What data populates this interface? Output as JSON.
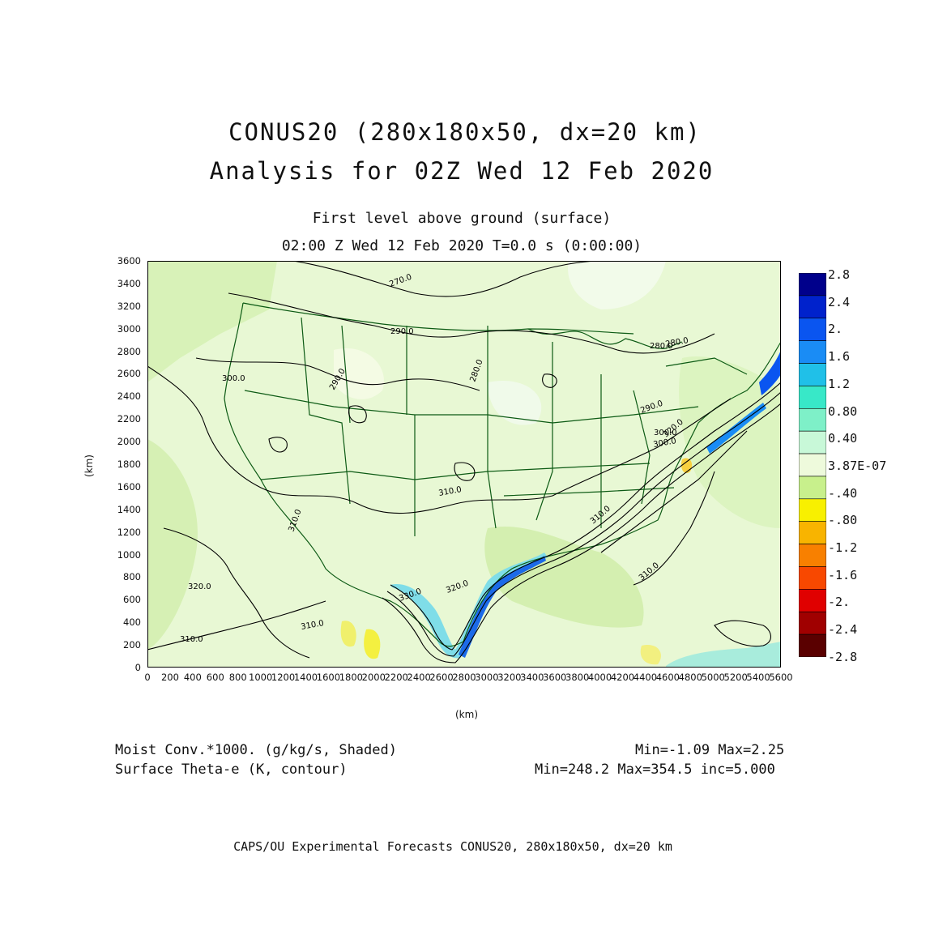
{
  "title": {
    "line1": "CONUS20 (280x180x50, dx=20 km)",
    "line2": "Analysis for 02Z Wed 12 Feb 2020"
  },
  "subtitle": {
    "line1": "First level above ground (surface)",
    "line2": "02:00 Z Wed 12 Feb 2020   T=0.0 s (0:00:00)"
  },
  "axes": {
    "x_unit": "(km)",
    "y_unit": "(km)",
    "y_ticks": [
      "0",
      "200",
      "400",
      "600",
      "800",
      "1000",
      "1200",
      "1400",
      "1600",
      "1800",
      "2000",
      "2200",
      "2400",
      "2600",
      "2800",
      "3000",
      "3200",
      "3400",
      "3600"
    ],
    "x_ticks": [
      "0",
      "200",
      "400",
      "600",
      "800",
      "1000",
      "1200",
      "1400",
      "1600",
      "1800",
      "2000",
      "2200",
      "2400",
      "2600",
      "2800",
      "3000",
      "3200",
      "3400",
      "3600",
      "3800",
      "4000",
      "4200",
      "4400",
      "4600",
      "4800",
      "5000",
      "5200",
      "5400",
      "5600"
    ],
    "x_range": [
      0,
      5600
    ],
    "y_range": [
      0,
      3600
    ]
  },
  "contour_labels": [
    "270.0",
    "290.0",
    "300.0",
    "280.0",
    "290.0",
    "280.0",
    "280.0",
    "290.0",
    "300.0",
    "310.0",
    "310.0",
    "320.0",
    "330.0",
    "320.0",
    "310.0",
    "310.0",
    "310.0",
    "320.0",
    "300.0",
    "310.0"
  ],
  "legend": {
    "labels": [
      "2.8",
      "2.4",
      "2.",
      "1.6",
      "1.2",
      "0.80",
      "0.40",
      "3.87E-07",
      "-.40",
      "-.80",
      "-1.2",
      "-1.6",
      "-2.",
      "-2.4",
      "-2.8"
    ],
    "colors": [
      "#00008b",
      "#0022cc",
      "#0a55f0",
      "#1a8cf5",
      "#20c0e8",
      "#38e8c8",
      "#7ef0c8",
      "#c8f8d8",
      "#eefadc",
      "#c8f08c",
      "#f8f000",
      "#f8b400",
      "#f88000",
      "#f84800",
      "#e00000",
      "#a00000",
      "#5a0000"
    ]
  },
  "fields": {
    "shaded": "Moist Conv.*1000. (g/kg/s, Shaded)",
    "shaded_stats": "Min=-1.09 Max=2.25",
    "contour": "Surface Theta-e (K, contour)",
    "contour_stats": "Min=248.2 Max=354.5 inc=5.000"
  },
  "credit": "CAPS/OU Experimental Forecasts  CONUS20, 280x180x50, dx=20 km"
}
